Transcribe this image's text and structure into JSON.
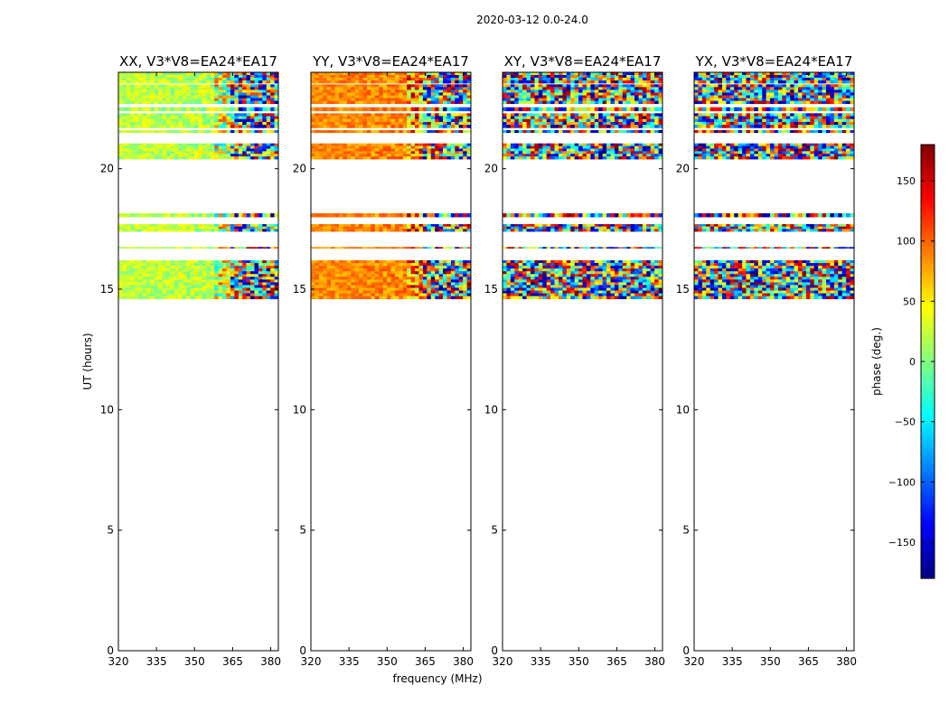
{
  "figure": {
    "suptitle": "2020-03-12 0.0-24.0",
    "xlabel": "frequency (MHz)",
    "ylabel": "UT (hours)"
  },
  "colorbar": {
    "label": "phase (deg.)",
    "range": [
      -180,
      180
    ],
    "ticks": [
      -150,
      -100,
      -50,
      0,
      50,
      100,
      150
    ],
    "tick_labels": [
      "−150",
      "−100",
      "−50",
      "0",
      "50",
      "100",
      "150"
    ],
    "colormap_stops": [
      "#00007f",
      "#0000ff",
      "#007fff",
      "#00ffff",
      "#7fff7f",
      "#ffff00",
      "#ff7f00",
      "#ff0000",
      "#7f0000"
    ]
  },
  "chart_data": [
    {
      "type": "heatmap",
      "title": "XX, V3*V8=EA24*EA17",
      "xlim": [
        320,
        383
      ],
      "ylim": [
        0,
        24
      ],
      "xticks": [
        320,
        335,
        350,
        365,
        380
      ],
      "yticks": [
        0,
        5,
        10,
        15,
        20
      ],
      "x_tick_labels": [
        "320",
        "335",
        "350",
        "365",
        "380"
      ],
      "y_tick_labels": [
        "0",
        "5",
        "10",
        "15",
        "20"
      ],
      "mode": "coherent",
      "bands": [
        [
          14.6,
          16.2
        ],
        [
          16.7,
          16.75
        ],
        [
          17.4,
          17.7
        ],
        [
          18.0,
          18.15
        ],
        [
          20.4,
          21.05
        ],
        [
          21.5,
          21.6
        ],
        [
          21.7,
          22.3
        ],
        [
          22.4,
          22.55
        ],
        [
          22.7,
          23.5
        ],
        [
          23.55,
          24.0
        ]
      ],
      "summary": "Phase (deg) vs frequency and UT; data present only in UT bands listed; coherent phases near 0-50 deg below ~362 MHz, wrapping at higher frequencies."
    },
    {
      "type": "heatmap",
      "title": "YY, V3*V8=EA24*EA17",
      "xlim": [
        320,
        383
      ],
      "ylim": [
        0,
        24
      ],
      "xticks": [
        320,
        335,
        350,
        365,
        380
      ],
      "yticks": [
        0,
        5,
        10,
        15,
        20
      ],
      "x_tick_labels": [
        "320",
        "335",
        "350",
        "365",
        "380"
      ],
      "y_tick_labels": [
        "0",
        "5",
        "10",
        "15",
        "20"
      ],
      "mode": "coherent-warm",
      "bands": [
        [
          14.6,
          16.2
        ],
        [
          16.7,
          16.75
        ],
        [
          17.4,
          17.7
        ],
        [
          18.0,
          18.15
        ],
        [
          20.4,
          21.05
        ],
        [
          21.5,
          21.6
        ],
        [
          21.7,
          22.3
        ],
        [
          22.4,
          22.55
        ],
        [
          22.7,
          23.5
        ],
        [
          23.55,
          24.0
        ]
      ],
      "summary": "Coherent phases near 50-110 deg below ~362 MHz, wrapping at higher frequencies."
    },
    {
      "type": "heatmap",
      "title": "XY, V3*V8=EA24*EA17",
      "xlim": [
        320,
        383
      ],
      "ylim": [
        0,
        24
      ],
      "xticks": [
        320,
        335,
        350,
        365,
        380
      ],
      "yticks": [
        0,
        5,
        10,
        15,
        20
      ],
      "x_tick_labels": [
        "320",
        "335",
        "350",
        "365",
        "380"
      ],
      "y_tick_labels": [
        "0",
        "5",
        "10",
        "15",
        "20"
      ],
      "mode": "noise",
      "bands": [
        [
          14.6,
          16.2
        ],
        [
          16.7,
          16.75
        ],
        [
          17.4,
          17.7
        ],
        [
          18.0,
          18.15
        ],
        [
          20.4,
          21.05
        ],
        [
          21.5,
          21.6
        ],
        [
          21.7,
          22.3
        ],
        [
          22.4,
          22.55
        ],
        [
          22.7,
          23.5
        ],
        [
          23.55,
          24.0
        ]
      ],
      "summary": "Cross-hand phases appear random (uniform over -180..180)."
    },
    {
      "type": "heatmap",
      "title": "YX, V3*V8=EA24*EA17",
      "xlim": [
        320,
        383
      ],
      "ylim": [
        0,
        24
      ],
      "xticks": [
        320,
        335,
        350,
        365,
        380
      ],
      "yticks": [
        0,
        5,
        10,
        15,
        20
      ],
      "x_tick_labels": [
        "320",
        "335",
        "350",
        "365",
        "380"
      ],
      "y_tick_labels": [
        "0",
        "5",
        "10",
        "15",
        "20"
      ],
      "mode": "noise",
      "bands": [
        [
          14.6,
          16.2
        ],
        [
          16.7,
          16.75
        ],
        [
          17.4,
          17.7
        ],
        [
          18.0,
          18.15
        ],
        [
          20.4,
          21.05
        ],
        [
          21.5,
          21.6
        ],
        [
          21.7,
          22.3
        ],
        [
          22.4,
          22.55
        ],
        [
          22.7,
          23.5
        ],
        [
          23.55,
          24.0
        ]
      ],
      "summary": "Cross-hand phases appear random (uniform over -180..180)."
    }
  ]
}
